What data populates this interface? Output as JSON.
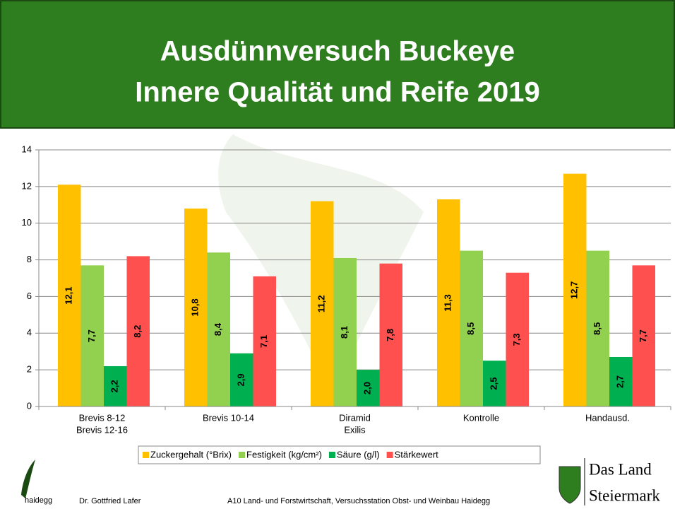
{
  "header": {
    "title_lines": [
      "Ausdünnversuch Buckeye",
      "Innere Qualität und Reife 2019"
    ]
  },
  "chart_data": {
    "type": "bar",
    "categories": [
      [
        "Brevis 8-12",
        "Brevis 12-16"
      ],
      [
        "Brevis 10-14"
      ],
      [
        "Diramid",
        "Exilis"
      ],
      [
        "Kontrolle"
      ],
      [
        "Handausd."
      ]
    ],
    "series": [
      {
        "name": "Zuckergehalt (°Brix)",
        "color": "#ffc000",
        "values": [
          12.1,
          10.8,
          11.2,
          11.3,
          12.7
        ],
        "value_labels": [
          "12,1",
          "10,8",
          "11,2",
          "11,3",
          "12,7"
        ]
      },
      {
        "name": "Festigkeit (kg/cm²)",
        "color": "#92d050",
        "values": [
          7.7,
          8.4,
          8.1,
          8.5,
          8.5
        ],
        "value_labels": [
          "7,7",
          "8,4",
          "8,1",
          "8,5",
          "8,5"
        ]
      },
      {
        "name": "Säure (g/l)",
        "color": "#00b050",
        "values": [
          2.2,
          2.9,
          2.0,
          2.5,
          2.7
        ],
        "value_labels": [
          "2,2",
          "2,9",
          "2,0",
          "2,5",
          "2,7"
        ]
      },
      {
        "name": "Stärkewert",
        "color": "#ff5050",
        "values": [
          8.2,
          7.1,
          7.8,
          7.3,
          7.7
        ],
        "value_labels": [
          "8,2",
          "7,1",
          "7,8",
          "7,3",
          "7,7"
        ]
      }
    ],
    "ylim": [
      0,
      14
    ],
    "yticks": [
      0,
      2,
      4,
      6,
      8,
      10,
      12,
      14
    ],
    "grid": true
  },
  "footer": {
    "logo_text": "haidegg",
    "author": "Dr. Gottfried Lafer",
    "institution": "A10 Land- und Forstwirtschaft, Versuchsstation Obst- und Weinbau Haidegg",
    "brand_lines": [
      "Das Land",
      "Steiermark"
    ]
  }
}
